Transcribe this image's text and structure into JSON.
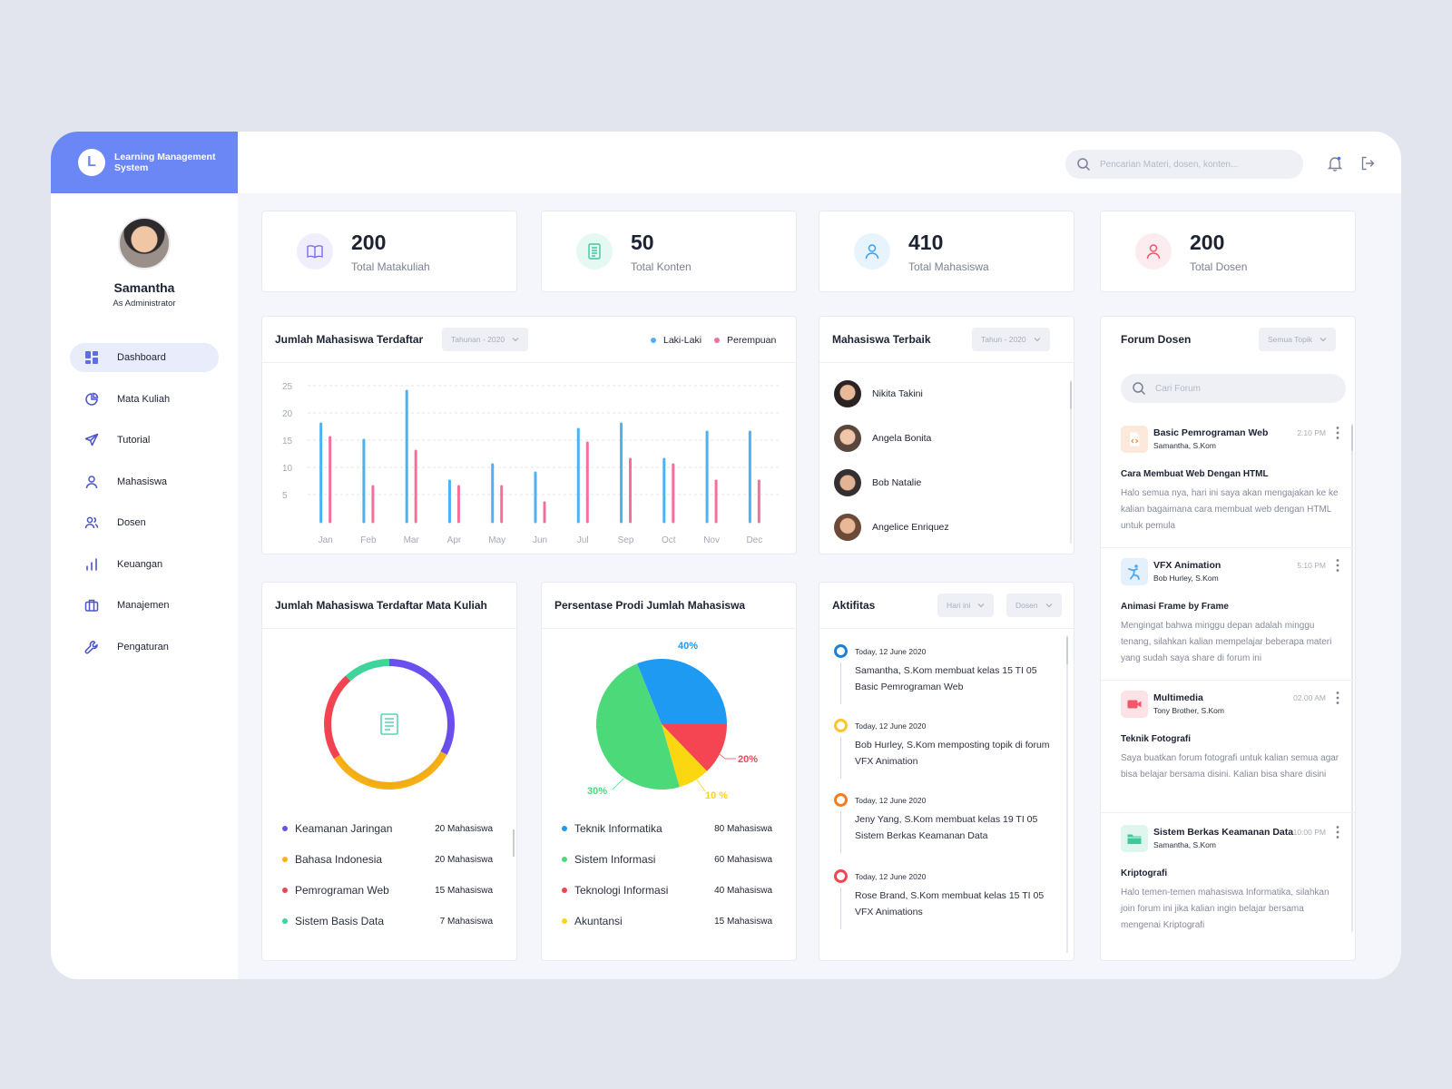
{
  "brand": {
    "logo_letter": "L",
    "name": "Learning Management System"
  },
  "profile": {
    "name": "Samantha",
    "role": "As Administrator"
  },
  "nav": [
    {
      "label": "Dashboard",
      "icon": "dashboard-icon"
    },
    {
      "label": "Mata Kuliah",
      "icon": "pie-icon"
    },
    {
      "label": "Tutorial",
      "icon": "send-icon"
    },
    {
      "label": "Mahasiswa",
      "icon": "user-icon"
    },
    {
      "label": "Dosen",
      "icon": "users-icon"
    },
    {
      "label": "Keuangan",
      "icon": "bar-chart-icon"
    },
    {
      "label": "Manajemen",
      "icon": "briefcase-icon"
    },
    {
      "label": "Pengaturan",
      "icon": "wrench-icon"
    }
  ],
  "topbar": {
    "search_placeholder": "Pencarian Materi, dosen, konten..."
  },
  "stats": [
    {
      "value": "200",
      "label": "Total Matakuliah",
      "color": "#7c6cf0",
      "bg": "#f0eefc"
    },
    {
      "value": "50",
      "label": "Total Konten",
      "color": "#3cc9a0",
      "bg": "#e6f8f2"
    },
    {
      "value": "410",
      "label": "Total Mahasiswa",
      "color": "#3aa0f0",
      "bg": "#e8f4fd"
    },
    {
      "value": "200",
      "label": "Total Dosen",
      "color": "#f2566b",
      "bg": "#fdecef"
    }
  ],
  "bar_card": {
    "title": "Jumlah Mahasiswa Terdaftar",
    "filter": "Tahunan - 2020",
    "legend": [
      "Laki-Laki",
      "Perempuan"
    ]
  },
  "chart_data": {
    "type": "bar",
    "categories": [
      "Jan",
      "Feb",
      "Mar",
      "Apr",
      "May",
      "Jun",
      "Jul",
      "Sep",
      "Oct",
      "Nov",
      "Dec"
    ],
    "series": [
      {
        "name": "Laki-Laki",
        "color": "#4fb0f2",
        "values": [
          18,
          15,
          24,
          7.5,
          10.5,
          9,
          17,
          18,
          11.5,
          16.5,
          16.5
        ]
      },
      {
        "name": "Perempuan",
        "color": "#f2709a",
        "values": [
          15.5,
          6.5,
          13,
          6.5,
          6.5,
          3.5,
          14.5,
          11.5,
          10.5,
          7.5,
          7.5
        ]
      }
    ],
    "yticks": [
      5,
      10,
      15,
      20,
      25
    ],
    "ylim": [
      0,
      27
    ]
  },
  "best_students": {
    "title": "Mahasiswa Terbaik",
    "filter": "Tahun - 2020",
    "items": [
      "Nikita Takini",
      "Angela Bonita",
      "Bob Natalie",
      "Angelice Enriquez"
    ]
  },
  "forum": {
    "title": "Forum Dosen",
    "filter": "Semua Topik",
    "search_placeholder": "Cari Forum",
    "posts": [
      {
        "title": "Basic Pemrograman Web",
        "author": "Samantha, S.Kom",
        "time": "2:10 PM",
        "subject": "Cara Membuat Web Dengan HTML",
        "body": "Halo semua nya, hari ini saya akan mengajakan ke ke kalian bagaimana cara membuat web dengan HTML untuk pemula",
        "icon": "code-file-icon",
        "color": "#f5874a",
        "bg": "#fde9dc"
      },
      {
        "title": "VFX Animation",
        "author": "Bob Hurley, S.Kom",
        "time": "5:10 PM",
        "subject": "Animasi Frame by Frame",
        "body": "Mengingat bahwa minggu depan adalah minggu tenang, silahkan kalian mempelajar beberapa materi yang sudah saya share di forum ini",
        "icon": "dancer-icon",
        "color": "#4fa6f2",
        "bg": "#e4f1fd"
      },
      {
        "title": "Multimedia",
        "author": "Tony Brother, S.Kom",
        "time": "02.00 AM",
        "subject": "Teknik Fotografi",
        "body": "Saya buatkan forum fotografi untuk kalian semua agar bisa belajar bersama disini. Kalian bisa share disini",
        "icon": "video-icon",
        "color": "#f2566b",
        "bg": "#fde3e6"
      },
      {
        "title": "Sistem Berkas Keamanan Data",
        "author": "Samantha, S.Kom",
        "time": "10:00 PM",
        "subject": "Kriptografi",
        "body": "Halo temen-temen mahasiswa Informatika, silahkan join forum ini jika kalian ingin belajar bersama mengenai Kriptografi",
        "icon": "folder-icon",
        "color": "#3cc9a0",
        "bg": "#dff6ee"
      }
    ]
  },
  "course_card": {
    "title": "Jumlah Mahasiswa Terdaftar Mata Kuliah",
    "items": [
      {
        "name": "Keamanan Jaringan",
        "value": "20 Mahasiswa",
        "color": "#6c4ff0"
      },
      {
        "name": "Bahasa Indonesia",
        "value": "20 Mahasiswa",
        "color": "#fbb315"
      },
      {
        "name": "Pemrograman Web",
        "value": "15 Mahasiswa",
        "color": "#f54452"
      },
      {
        "name": "Sistem Basis Data",
        "value": "7 Mahasiswa",
        "color": "#3fd59a"
      }
    ]
  },
  "prodi_card": {
    "title": "Persentase Prodi Jumlah Mahasiswa",
    "labels": [
      "40%",
      "20%",
      "10 %",
      "30%"
    ],
    "items": [
      {
        "name": "Teknik Informatika",
        "value": "80 Mahasiswa",
        "color": "#1e9af2"
      },
      {
        "name": "Sistem Informasi",
        "value": "60 Mahasiswa",
        "color": "#4cd97a"
      },
      {
        "name": "Teknologi Informasi",
        "value": "40 Mahasiswa",
        "color": "#f54452"
      },
      {
        "name": "Akuntansi",
        "value": "15 Mahasiswa",
        "color": "#fbd711"
      }
    ]
  },
  "activity": {
    "title": "Aktifitas",
    "filter1": "Hari ini",
    "filter2": "Dosen",
    "items": [
      {
        "date": "Today, 12 June 2020",
        "text": "Samantha, S.Kom membuat kelas 15 TI 05 Basic Pemrograman Web",
        "color": "#1e7fd6"
      },
      {
        "date": "Today, 12 June 2020",
        "text": "Bob Hurley, S.Kom memposting topik di forum VFX Animation",
        "color": "#fbc62b"
      },
      {
        "date": "Today, 12 June 2020",
        "text": "Jeny Yang, S.Kom membuat kelas 19 TI 05 Sistem Berkas Keamanan Data",
        "color": "#f57c1f"
      },
      {
        "date": "Today, 12 June 2020",
        "text": "Rose Brand, S.Kom membuat kelas 15 TI 05 VFX Animations",
        "color": "#f54452"
      }
    ]
  }
}
